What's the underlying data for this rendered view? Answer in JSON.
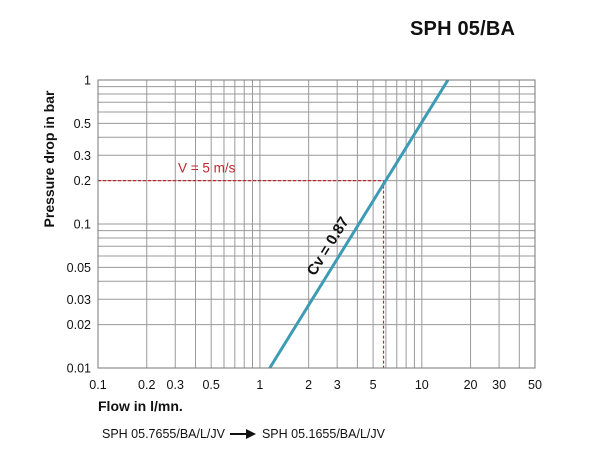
{
  "header": {
    "model": "SPH 05/BA"
  },
  "footer": {
    "from_model": "SPH 05.7655/BA/L/JV",
    "to_model": "SPH 05.1655/BA/L/JV"
  },
  "chart_data": {
    "type": "line",
    "title": "",
    "xlabel": "Flow in l/mn.",
    "ylabel": "Pressure drop in bar",
    "xscale": "log",
    "yscale": "log",
    "xlim": [
      0.1,
      50
    ],
    "ylim": [
      0.01,
      1
    ],
    "grid": true,
    "xticks": [
      0.1,
      0.2,
      0.3,
      0.5,
      1,
      2,
      3,
      5,
      10,
      20,
      30,
      50
    ],
    "xtick_labels": [
      "0.1",
      "0.2",
      "0.3",
      "0.5",
      "1",
      "2",
      "3",
      "5",
      "10",
      "20",
      "30",
      "50"
    ],
    "yticks": [
      0.01,
      0.02,
      0.03,
      0.05,
      0.1,
      0.2,
      0.3,
      0.5,
      1
    ],
    "ytick_labels": [
      "0.01",
      "0.02",
      "0.03",
      "0.05",
      "0.1",
      "0.2",
      "0.3",
      "0.5",
      "1"
    ],
    "series": [
      {
        "name": "",
        "label": "Cv = 0.87",
        "color": "#3d9bb5",
        "x": [
          1.15,
          14.5
        ],
        "y": [
          0.01,
          1
        ]
      }
    ],
    "annotations": [
      {
        "text": "V = 5 m/s",
        "color": "#c0282e",
        "x": 5.8,
        "y": 0.2
      }
    ]
  }
}
